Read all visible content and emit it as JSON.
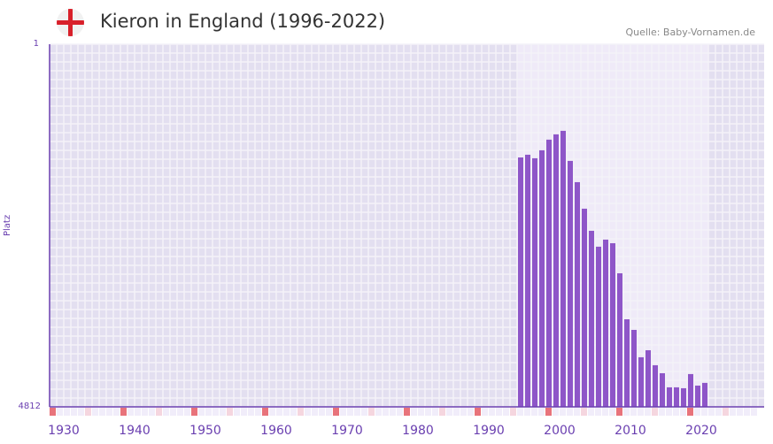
{
  "header": {
    "title": "Kieron in England (1996-2022)",
    "source": "Quelle: Baby-Vornamen.de",
    "flag_icon": "england-flag-icon"
  },
  "colors": {
    "bar": "#8e56c8",
    "decade_marker": "#e8737b",
    "half_marker": "#f5d6df",
    "axis": "#6a3fb0"
  },
  "chart_data": {
    "type": "bar",
    "title": "Kieron in England (1996-2022)",
    "ylabel": "Platz",
    "ylim": [
      4812,
      1
    ],
    "y_ticks": [
      "1",
      "4812"
    ],
    "xlim": [
      1930,
      2030
    ],
    "x_ticks": [
      "1930",
      "1940",
      "1950",
      "1960",
      "1970",
      "1980",
      "1990",
      "2000",
      "2010",
      "2020"
    ],
    "categories": [
      1996,
      1997,
      1998,
      1999,
      2000,
      2001,
      2002,
      2003,
      2004,
      2005,
      2006,
      2007,
      2008,
      2009,
      2010,
      2011,
      2012,
      2013,
      2014,
      2015,
      2016,
      2017,
      2018,
      2019,
      2020,
      2021,
      2022
    ],
    "values": [
      1503,
      1467,
      1514,
      1408,
      1267,
      1197,
      1150,
      1549,
      1831,
      2183,
      2476,
      2687,
      2593,
      2641,
      3040,
      3650,
      3791,
      4154,
      4061,
      4260,
      4366,
      4553,
      4553,
      4565,
      4377,
      4530,
      4494
    ]
  }
}
